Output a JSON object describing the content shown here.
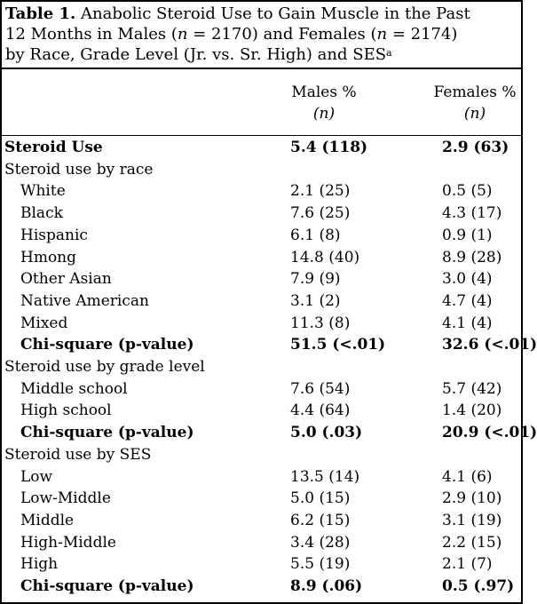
{
  "caption": {
    "label": "Table 1.",
    "line1": "Anabolic Steroid Use to Gain Muscle in the Past",
    "line2_a": "12 Months in Males (",
    "n_var": "n",
    "line2_b": " = 2170) and Females (",
    "line2_c": " = 2174)",
    "line3": "by Race, Grade Level (Jr. vs. Sr. High) and SES",
    "footnote_mark": "a"
  },
  "columns": {
    "males": "Males %",
    "females": "Females %",
    "n": "(n)"
  },
  "rows": [
    {
      "label": "Steroid Use",
      "males": "5.4 (118)",
      "females": "2.9 (63)",
      "style": "bold"
    },
    {
      "label": "Steroid use by race",
      "males": "",
      "females": "",
      "style": "section"
    },
    {
      "label": "White",
      "males": "2.1 (25)",
      "females": "0.5 (5)",
      "style": "sub"
    },
    {
      "label": "Black",
      "males": "7.6 (25)",
      "females": "4.3 (17)",
      "style": "sub"
    },
    {
      "label": "Hispanic",
      "males": "6.1 (8)",
      "females": "0.9 (1)",
      "style": "sub"
    },
    {
      "label": "Hmong",
      "males": "14.8 (40)",
      "females": "8.9 (28)",
      "style": "sub"
    },
    {
      "label": "Other Asian",
      "males": "7.9 (9)",
      "females": "3.0 (4)",
      "style": "sub"
    },
    {
      "label": "Native American",
      "males": "3.1 (2)",
      "females": "4.7 (4)",
      "style": "sub"
    },
    {
      "label": "Mixed",
      "males": "11.3 (8)",
      "females": "4.1 (4)",
      "style": "sub"
    },
    {
      "label": "Chi-square (p-value)",
      "males": "51.5 (<.01)",
      "females": "32.6 (<.01)",
      "style": "subbold"
    },
    {
      "label": "Steroid use by grade level",
      "males": "",
      "females": "",
      "style": "section"
    },
    {
      "label": "Middle school",
      "males": "7.6 (54)",
      "females": "5.7 (42)",
      "style": "sub"
    },
    {
      "label": "High school",
      "males": "4.4 (64)",
      "females": "1.4 (20)",
      "style": "sub"
    },
    {
      "label": "Chi-square (p-value)",
      "males": "5.0 (.03)",
      "females": "20.9 (<.01)",
      "style": "subbold"
    },
    {
      "label": "Steroid use by SES",
      "males": "",
      "females": "",
      "style": "section"
    },
    {
      "label": "Low",
      "males": "13.5 (14)",
      "females": "4.1 (6)",
      "style": "sub"
    },
    {
      "label": "Low-Middle",
      "males": "5.0 (15)",
      "females": "2.9 (10)",
      "style": "sub"
    },
    {
      "label": "Middle",
      "males": "6.2 (15)",
      "females": "3.1 (19)",
      "style": "sub"
    },
    {
      "label": "High-Middle",
      "males": "3.4 (28)",
      "females": "2.2 (15)",
      "style": "sub"
    },
    {
      "label": "High",
      "males": "5.5 (19)",
      "females": "2.1 (7)",
      "style": "sub"
    },
    {
      "label": "Chi-square (p-value)",
      "males": "8.9 (.06)",
      "females": "0.5 (.97)",
      "style": "subbold"
    }
  ]
}
